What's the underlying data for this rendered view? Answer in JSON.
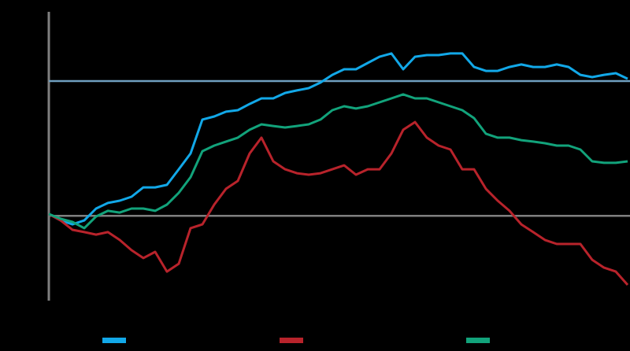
{
  "chart_data": {
    "type": "line",
    "ylim": [
      -40,
      100
    ],
    "reference_lines": [
      {
        "value": 0,
        "color": "#7f7f7f"
      },
      {
        "value": 64.8,
        "color": "#6f9fbf"
      }
    ],
    "series": [
      {
        "color": "#12a8e8",
        "values": [
          0.9,
          -2.2,
          -4.1,
          -2.2,
          3.5,
          6.2,
          7.3,
          9.2,
          13.7,
          13.7,
          14.9,
          22.4,
          30.0,
          46.3,
          47.8,
          50.1,
          50.8,
          53.8,
          56.5,
          56.5,
          59.1,
          60.3,
          61.4,
          64.1,
          67.8,
          70.5,
          70.5,
          73.5,
          76.5,
          78.1,
          70.5,
          76.5,
          77.3,
          77.3,
          78.1,
          78.1,
          71.6,
          69.7,
          69.7,
          71.6,
          72.8,
          71.6,
          71.6,
          72.8,
          71.6,
          67.8,
          66.7,
          67.8,
          68.6,
          65.9
        ]
      },
      {
        "color": "#b8232b",
        "values": [
          0.9,
          -2.2,
          -6.7,
          -7.8,
          -9.0,
          -7.8,
          -11.6,
          -16.5,
          -20.3,
          -17.3,
          -26.8,
          -23.0,
          -5.9,
          -4.1,
          5.4,
          13.0,
          16.8,
          30.0,
          37.6,
          26.2,
          22.4,
          20.5,
          19.8,
          20.5,
          22.4,
          24.3,
          19.8,
          22.4,
          22.4,
          30.0,
          41.4,
          45.1,
          37.6,
          33.8,
          31.9,
          22.4,
          22.4,
          13.0,
          7.3,
          2.4,
          -4.1,
          -7.8,
          -11.6,
          -13.5,
          -13.5,
          -13.5,
          -21.1,
          -24.9,
          -26.8,
          -33.2
        ]
      },
      {
        "color": "#12a37b",
        "values": [
          0.9,
          -1.4,
          -2.9,
          -5.9,
          -0.3,
          2.4,
          1.6,
          3.5,
          3.5,
          2.4,
          5.4,
          11.1,
          18.6,
          31.1,
          33.8,
          35.7,
          37.6,
          41.4,
          44.0,
          43.2,
          42.5,
          43.2,
          44.0,
          46.3,
          50.8,
          52.7,
          51.6,
          52.7,
          54.6,
          56.5,
          58.4,
          56.5,
          56.5,
          54.6,
          52.7,
          50.8,
          47.0,
          39.5,
          37.6,
          37.6,
          36.4,
          35.7,
          34.9,
          33.8,
          33.8,
          31.9,
          26.2,
          25.5,
          25.5,
          26.2
        ]
      }
    ]
  }
}
